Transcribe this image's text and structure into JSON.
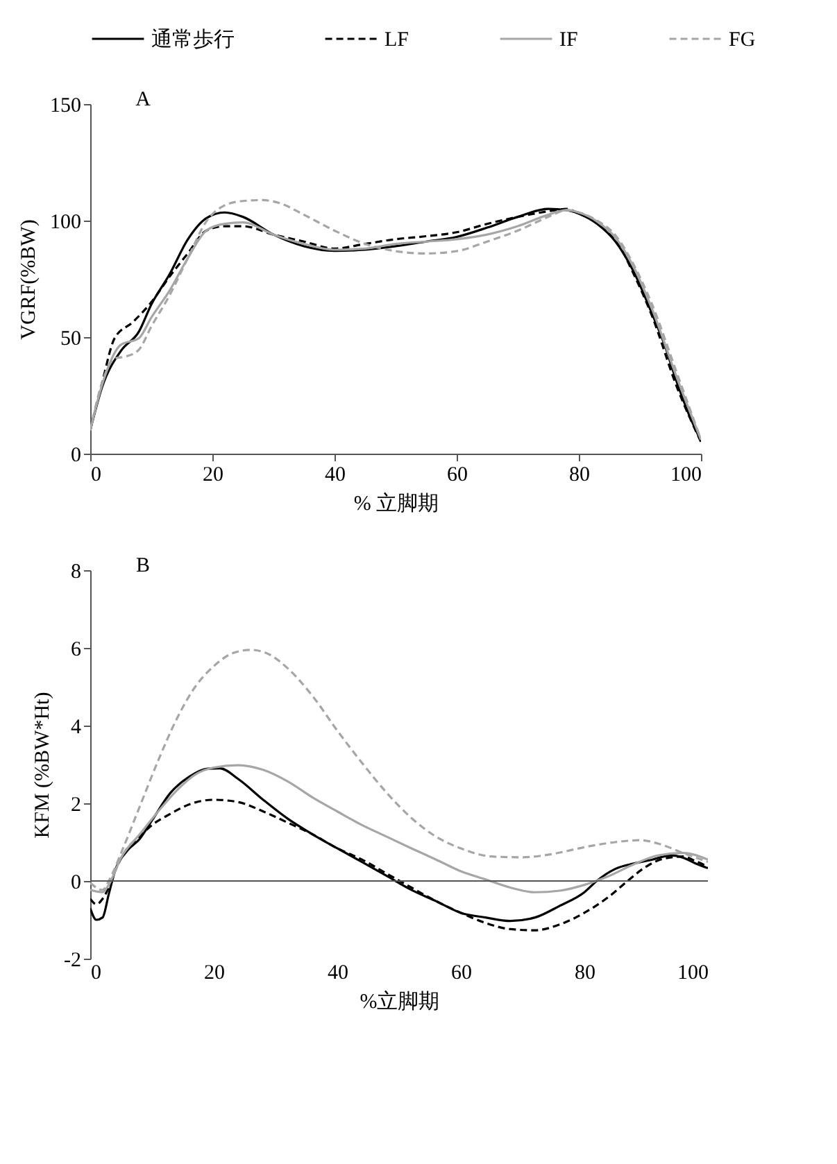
{
  "chart_data": [
    {
      "type": "line",
      "annotations": [
        "A"
      ],
      "xlabel": "% 立脚期",
      "ylabel": "VGRF(%BW)",
      "xlim": [
        0,
        100
      ],
      "xticks": [
        0,
        20,
        40,
        60,
        80,
        100
      ],
      "ylim": [
        0,
        150
      ],
      "yticks": [
        0,
        50,
        100,
        150
      ],
      "legend": "top",
      "grid": false,
      "series": [
        {
          "name": "通常歩行",
          "color": "#000000",
          "line_style": "solid",
          "x": [
            0,
            2,
            5,
            8,
            10,
            13,
            16,
            19,
            22,
            25,
            30,
            35,
            40,
            45,
            50,
            55,
            60,
            65,
            70,
            75,
            78,
            80,
            83,
            86,
            89,
            92,
            94,
            96,
            98,
            100
          ],
          "values": [
            10,
            29,
            44,
            52.5,
            64,
            77,
            92,
            101,
            103.5,
            101.6,
            94,
            89,
            87,
            87.5,
            89,
            91,
            93,
            97,
            101.6,
            105,
            104.5,
            103,
            98.6,
            91,
            78,
            60,
            47,
            31,
            17,
            5.5
          ]
        },
        {
          "name": "LF",
          "color": "#000000",
          "line_style": "dashed",
          "x": [
            0,
            2,
            4,
            7,
            10,
            13,
            16,
            19,
            22,
            25,
            30,
            35,
            40,
            45,
            50,
            55,
            60,
            65,
            70,
            75,
            78,
            80,
            83,
            86,
            89,
            92,
            96,
            100
          ],
          "values": [
            10,
            31,
            49.6,
            56.5,
            65,
            76,
            86,
            95.7,
            97.6,
            97.6,
            94,
            91,
            88,
            90,
            92,
            93.3,
            95,
            98.6,
            101.6,
            104,
            105,
            103,
            99,
            92,
            77,
            59,
            29,
            5
          ]
        },
        {
          "name": "IF",
          "color": "#a6a6a6",
          "line_style": "solid",
          "x": [
            0,
            2,
            5,
            8,
            10,
            13,
            16,
            19,
            22,
            25,
            30,
            35,
            40,
            45,
            50,
            55,
            60,
            65,
            70,
            75,
            78,
            80,
            83,
            86,
            89,
            92,
            96,
            100
          ],
          "values": [
            10,
            30,
            46.7,
            49.6,
            58.4,
            70,
            84,
            95.7,
            98.6,
            99.2,
            94,
            90,
            87.5,
            88,
            90,
            91,
            92,
            94,
            97.6,
            102.5,
            104.5,
            103.5,
            99.6,
            92.7,
            80,
            62,
            33,
            6
          ]
        },
        {
          "name": "FG",
          "color": "#a6a6a6",
          "line_style": "dashed",
          "x": [
            0,
            2,
            4,
            6,
            8,
            10,
            13,
            16,
            19,
            22,
            25,
            28,
            31,
            35,
            40,
            45,
            50,
            55,
            60,
            65,
            70,
            75,
            78,
            80,
            83,
            86,
            89,
            92,
            96,
            100
          ],
          "values": [
            10,
            31,
            40.8,
            41.8,
            44.7,
            54.5,
            68,
            84,
            99.6,
            106.5,
            108.4,
            108.8,
            107.5,
            102.5,
            95.7,
            90,
            86.9,
            85.9,
            86.9,
            91,
            95.7,
            101.6,
            104.5,
            103.5,
            100,
            93.7,
            81,
            64,
            35,
            6
          ]
        }
      ]
    },
    {
      "type": "line",
      "annotations": [
        "B"
      ],
      "xlabel": "%立脚期",
      "ylabel": "KFM (%BW*Ht)",
      "xlim": [
        0,
        100
      ],
      "xticks": [
        0,
        20,
        40,
        60,
        80,
        100
      ],
      "ylim": [
        -2,
        8
      ],
      "yticks": [
        -2,
        0,
        2,
        4,
        6,
        8
      ],
      "legend": "top",
      "grid": false,
      "ref_lines": [
        {
          "axis": "y",
          "value": 0
        }
      ],
      "series": [
        {
          "name": "通常歩行",
          "color": "#000000",
          "line_style": "solid",
          "x": [
            0,
            1,
            2,
            3,
            4,
            6,
            8,
            10,
            13,
            16,
            19,
            21,
            24,
            28,
            32,
            36,
            40,
            44,
            48,
            52,
            56,
            60,
            64,
            68,
            72,
            76,
            80,
            82,
            85,
            88,
            91,
            94,
            96,
            98,
            100
          ],
          "values": [
            -0.7,
            -1.0,
            -0.94,
            -0.34,
            0.25,
            0.78,
            1.08,
            1.56,
            2.27,
            2.68,
            2.89,
            2.9,
            2.62,
            2.09,
            1.6,
            1.2,
            0.84,
            0.49,
            0.13,
            -0.23,
            -0.52,
            -0.82,
            -0.94,
            -1.03,
            -0.94,
            -0.64,
            -0.29,
            0,
            0.31,
            0.45,
            0.55,
            0.66,
            0.6,
            0.45,
            0.33
          ]
        },
        {
          "name": "LF",
          "color": "#000000",
          "line_style": "dashed",
          "x": [
            0,
            1,
            2,
            3,
            4,
            6,
            8,
            10,
            13,
            16,
            20,
            24,
            28,
            32,
            36,
            40,
            44,
            48,
            52,
            56,
            60,
            64,
            68,
            72,
            76,
            80,
            84,
            87,
            90,
            93,
            96,
            98,
            100
          ],
          "values": [
            -0.46,
            -0.6,
            -0.46,
            -0.17,
            0.25,
            0.84,
            1.14,
            1.44,
            1.73,
            1.97,
            2.09,
            2.03,
            1.79,
            1.5,
            1.2,
            0.84,
            0.55,
            0.19,
            -0.17,
            -0.52,
            -0.82,
            -1.08,
            -1.24,
            -1.27,
            -1.12,
            -0.82,
            -0.4,
            0,
            0.37,
            0.58,
            0.63,
            0.51,
            0.37
          ]
        },
        {
          "name": "IF",
          "color": "#a6a6a6",
          "line_style": "solid",
          "x": [
            0,
            2,
            3,
            5,
            8,
            11,
            14,
            17,
            20,
            24,
            28,
            32,
            36,
            40,
            44,
            48,
            52,
            56,
            60,
            64,
            68,
            72,
            76,
            80,
            84,
            88,
            92,
            96,
            100
          ],
          "values": [
            -0.23,
            -0.29,
            -0.1,
            0.6,
            1.2,
            1.79,
            2.33,
            2.74,
            2.92,
            2.98,
            2.86,
            2.56,
            2.15,
            1.79,
            1.44,
            1.14,
            0.84,
            0.55,
            0.25,
            0.04,
            -0.17,
            -0.29,
            -0.25,
            -0.1,
            0.13,
            0.43,
            0.66,
            0.72,
            0.55
          ]
        },
        {
          "name": "FG",
          "color": "#a6a6a6",
          "line_style": "dashed",
          "x": [
            0,
            2,
            3,
            5,
            8,
            11,
            14,
            17,
            20,
            23,
            26,
            29,
            32,
            36,
            40,
            44,
            48,
            52,
            56,
            60,
            65,
            70,
            75,
            80,
            85,
            89,
            92,
            96,
            100
          ],
          "values": [
            -0.05,
            -0.23,
            0,
            0.72,
            1.91,
            3.1,
            4.17,
            5.0,
            5.53,
            5.86,
            5.95,
            5.83,
            5.47,
            4.76,
            3.87,
            3.04,
            2.27,
            1.62,
            1.14,
            0.84,
            0.63,
            0.61,
            0.7,
            0.87,
            1.0,
            1.05,
            0.96,
            0.72,
            0.49
          ]
        }
      ]
    }
  ]
}
